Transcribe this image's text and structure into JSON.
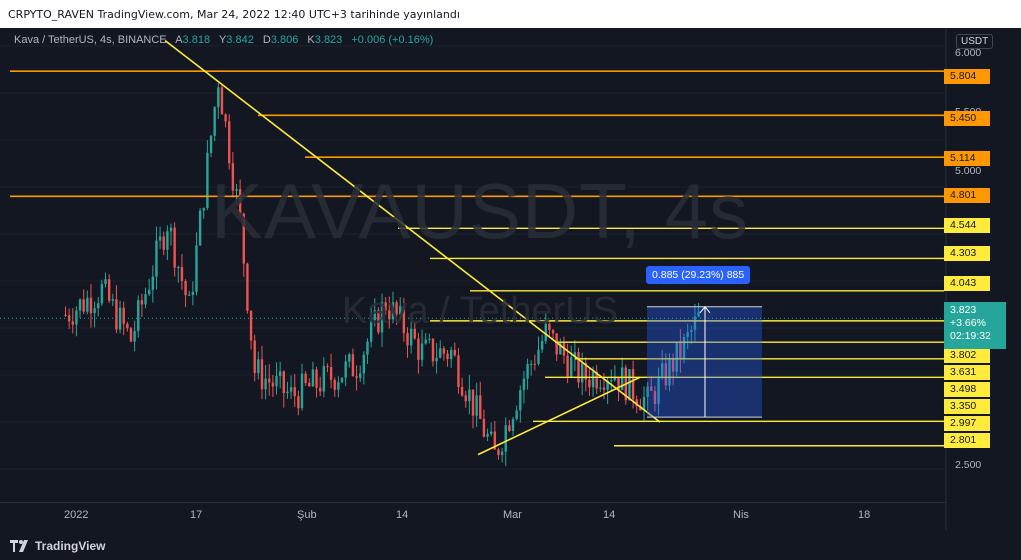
{
  "header": {
    "publish_text": "CRPYTO_RAVEN TradingView.com, Mar 24, 2022 12:40 UTC+3 tarihinde yayınlandı"
  },
  "symbol": {
    "title": "Kava / TetherUS, 4s, BINANCE",
    "open_label": "A",
    "open": "3.818",
    "high_label": "Y",
    "high": "3.842",
    "low_label": "D",
    "low": "3.806",
    "close_label": "K",
    "close": "3.823",
    "change": "+0.006 (+0.16%)"
  },
  "watermark": {
    "main": "KAVAUSDT, 4s",
    "sub": "Kava / TetherUS"
  },
  "price_axis": {
    "currency": "USDT",
    "ticks": [
      "6.000",
      "5.500",
      "5.000",
      "2.500"
    ]
  },
  "level_tags": {
    "orange": [
      "5.804",
      "5.450",
      "5.114",
      "4.801"
    ],
    "yellow": [
      "4.544",
      "4.303",
      "4.043",
      "3.802",
      "3.631",
      "3.498",
      "3.350",
      "2.997",
      "2.801"
    ]
  },
  "current_price": {
    "price": "3.823",
    "change_pct": "+3.66%",
    "countdown": "02:19:32"
  },
  "measure": {
    "label": "0.885 (29.23%) 885"
  },
  "time_axis": [
    "2022",
    "17",
    "Şub",
    "14",
    "Mar",
    "14",
    "Nis",
    "18"
  ],
  "footer": {
    "brand": "TradingView"
  },
  "colors": {
    "background": "#131722",
    "bull": "#26a69a",
    "bear": "#ef5350",
    "orange_level": "#ff9800",
    "yellow_level": "#ffeb3b",
    "measure": "#2962ff"
  },
  "chart_data": {
    "type": "candlestick",
    "title": "Kava / TetherUS, 4s, BINANCE",
    "ylabel": "USDT",
    "ylim": [
      2.35,
      6.15
    ],
    "x_ticks": [
      "2022",
      "17",
      "Şub",
      "14",
      "Mar",
      "14",
      "Nis",
      "18"
    ],
    "horizontal_levels_orange": [
      5.804,
      5.45,
      5.114,
      4.801
    ],
    "horizontal_levels_yellow": [
      4.544,
      4.303,
      4.043,
      3.802,
      3.631,
      3.498,
      3.35,
      2.997,
      2.801
    ],
    "last_price": 3.823,
    "measure_range": {
      "from": 3.03,
      "to": 3.915,
      "delta": 0.885,
      "pct": 29.23
    },
    "price_path": [
      {
        "date": "2021-12-27",
        "price": 3.85
      },
      {
        "date": "2022-01-01",
        "price": 4.05
      },
      {
        "date": "2022-01-05",
        "price": 3.65
      },
      {
        "date": "2022-01-10",
        "price": 4.6
      },
      {
        "date": "2022-01-13",
        "price": 3.9
      },
      {
        "date": "2022-01-17",
        "price": 5.75
      },
      {
        "date": "2022-01-20",
        "price": 4.6
      },
      {
        "date": "2022-01-22",
        "price": 3.4
      },
      {
        "date": "2022-01-27",
        "price": 3.2
      },
      {
        "date": "2022-02-05",
        "price": 3.45
      },
      {
        "date": "2022-02-09",
        "price": 3.95
      },
      {
        "date": "2022-02-14",
        "price": 3.55
      },
      {
        "date": "2022-02-18",
        "price": 3.55
      },
      {
        "date": "2022-02-24",
        "price": 2.72
      },
      {
        "date": "2022-02-28",
        "price": 3.35
      },
      {
        "date": "2022-03-03",
        "price": 3.7
      },
      {
        "date": "2022-03-08",
        "price": 3.35
      },
      {
        "date": "2022-03-12",
        "price": 3.4
      },
      {
        "date": "2022-03-17",
        "price": 3.15
      },
      {
        "date": "2022-03-22",
        "price": 3.6
      },
      {
        "date": "2022-03-24",
        "price": 3.823
      }
    ]
  }
}
